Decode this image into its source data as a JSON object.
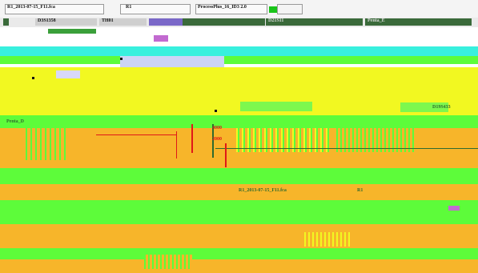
{
  "window": {
    "file_name": "R1_2013-07-15_F11.fca",
    "sample_label": "R1",
    "app_title": "ProcessPlus_16_ID3 2.0"
  },
  "tabs": [
    {
      "label": "D3S1358"
    },
    {
      "label": "TH01"
    },
    {
      "label": "D21S11"
    },
    {
      "label": "Penta_E"
    }
  ],
  "panel_labels": {
    "left_panel": "Penta_D",
    "right_panel": "D19S433"
  },
  "chart": {
    "y_ticks": [
      "4000",
      "2000"
    ]
  },
  "lower_window": {
    "file_name": "R1_2013-07-15_F11.fca",
    "sample_label": "R1"
  },
  "colors": {
    "glitch_green": "#5dfc3a",
    "glitch_orange": "#f7b52a",
    "glitch_yellow": "#f2f821",
    "glitch_cyan": "#38f0de",
    "dark_green": "#2f6b2f",
    "peak_red": "#e01818"
  }
}
